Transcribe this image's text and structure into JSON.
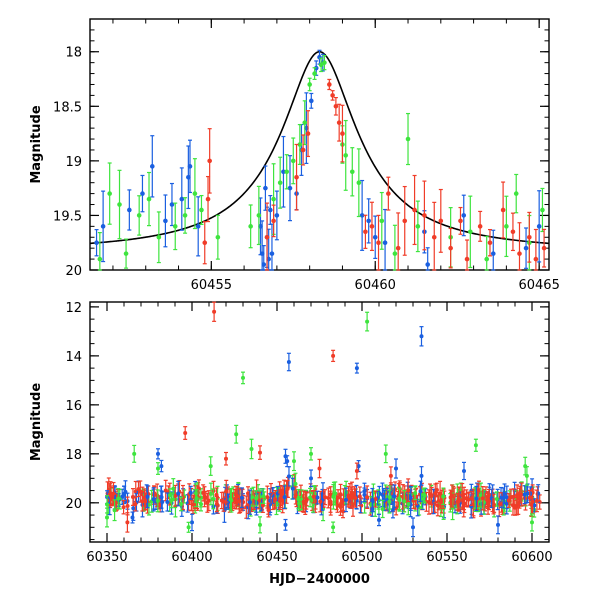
{
  "colors": {
    "blue": "#1a5fe0",
    "green": "#3ee43e",
    "red": "#f03c28",
    "model": "#000000"
  },
  "chart_data": [
    {
      "type": "scatter",
      "title": "",
      "xlabel": "",
      "ylabel": "Magnitude",
      "xlim": [
        60451.3,
        60465.3
      ],
      "ylim": [
        20.0,
        17.7
      ],
      "y_inverted": true,
      "xticks": [
        60455,
        60460,
        60465
      ],
      "xtick_labels": [
        "60455",
        "60460",
        "60465"
      ],
      "yticks": [
        18,
        18.5,
        19,
        19.5,
        20
      ],
      "ytick_labels": [
        "18",
        "18.5",
        "19",
        "19.5",
        "20"
      ],
      "model_curve": {
        "name": "",
        "type": "lorentzian",
        "t0": 60458.3,
        "peak_mag": 18.0,
        "baseline_mag": 19.84,
        "width_days": 0.95
      },
      "series": [
        {
          "color": "blue",
          "points": [
            [
              60451.5,
              19.75
            ],
            [
              60451.7,
              19.6
            ],
            [
              60452.5,
              19.45
            ],
            [
              60452.9,
              19.3
            ],
            [
              60453.2,
              19.05
            ],
            [
              60453.6,
              19.55
            ],
            [
              60453.8,
              19.4
            ],
            [
              60454.1,
              19.35
            ],
            [
              60454.3,
              19.15
            ],
            [
              60454.35,
              19.05
            ],
            [
              60454.6,
              19.6
            ],
            [
              60456.5,
              19.6
            ],
            [
              60456.55,
              19.85
            ],
            [
              60456.6,
              19.95
            ],
            [
              60456.65,
              19.25
            ],
            [
              60456.7,
              19.7
            ],
            [
              60456.75,
              19.9
            ],
            [
              60456.8,
              19.45
            ],
            [
              60456.85,
              19.85
            ],
            [
              60457.0,
              19.5
            ],
            [
              60457.2,
              19.1
            ],
            [
              60457.4,
              19.25
            ],
            [
              60457.6,
              19.3
            ],
            [
              60457.75,
              18.9
            ],
            [
              60457.9,
              18.7
            ],
            [
              60458.05,
              18.45
            ],
            [
              60458.2,
              18.15
            ],
            [
              60458.3,
              18.05
            ],
            [
              60458.4,
              18.1
            ],
            [
              60459.6,
              19.5
            ],
            [
              60459.8,
              19.55
            ],
            [
              60460.0,
              19.7
            ],
            [
              60460.3,
              19.75
            ],
            [
              60461.5,
              19.65
            ],
            [
              60461.6,
              19.95
            ],
            [
              60462.7,
              19.5
            ],
            [
              60463.6,
              19.85
            ],
            [
              60464.6,
              19.8
            ],
            [
              60465.0,
              19.6
            ]
          ]
        },
        {
          "color": "green",
          "points": [
            [
              60451.6,
              19.9
            ],
            [
              60451.9,
              19.3
            ],
            [
              60452.2,
              19.4
            ],
            [
              60452.4,
              19.85
            ],
            [
              60452.8,
              19.5
            ],
            [
              60453.1,
              19.35
            ],
            [
              60453.4,
              19.7
            ],
            [
              60453.9,
              19.6
            ],
            [
              60454.2,
              19.5
            ],
            [
              60454.5,
              19.3
            ],
            [
              60454.7,
              19.45
            ],
            [
              60455.2,
              19.7
            ],
            [
              60456.2,
              19.6
            ],
            [
              60456.45,
              19.5
            ],
            [
              60456.9,
              19.35
            ],
            [
              60457.1,
              19.2
            ],
            [
              60457.3,
              19.1
            ],
            [
              60457.5,
              19.0
            ],
            [
              60457.7,
              18.85
            ],
            [
              60457.85,
              18.65
            ],
            [
              60458.0,
              18.3
            ],
            [
              60458.15,
              18.2
            ],
            [
              60458.35,
              18.12
            ],
            [
              60458.45,
              18.1
            ],
            [
              60459.0,
              18.85
            ],
            [
              60459.1,
              18.95
            ],
            [
              60459.3,
              19.1
            ],
            [
              60459.5,
              19.2
            ],
            [
              60460.2,
              19.55
            ],
            [
              60460.6,
              19.85
            ],
            [
              60461.0,
              18.8
            ],
            [
              60461.3,
              19.6
            ],
            [
              60462.3,
              19.7
            ],
            [
              60462.9,
              19.65
            ],
            [
              60463.4,
              19.9
            ],
            [
              60464.0,
              19.6
            ],
            [
              60464.3,
              19.3
            ],
            [
              60464.7,
              19.75
            ],
            [
              60465.1,
              19.45
            ]
          ]
        },
        {
          "color": "red",
          "points": [
            [
              60454.8,
              19.75
            ],
            [
              60454.9,
              19.35
            ],
            [
              60454.95,
              19.0
            ],
            [
              60456.7,
              19.7
            ],
            [
              60456.9,
              19.55
            ],
            [
              60457.6,
              19.15
            ],
            [
              60457.8,
              18.9
            ],
            [
              60457.95,
              18.75
            ],
            [
              60458.6,
              18.3
            ],
            [
              60458.7,
              18.4
            ],
            [
              60458.8,
              18.5
            ],
            [
              60458.9,
              18.65
            ],
            [
              60459.0,
              18.75
            ],
            [
              60459.7,
              19.65
            ],
            [
              60459.9,
              19.6
            ],
            [
              60460.1,
              19.75
            ],
            [
              60460.4,
              19.3
            ],
            [
              60460.7,
              19.8
            ],
            [
              60460.9,
              19.55
            ],
            [
              60461.2,
              19.45
            ],
            [
              60461.5,
              19.5
            ],
            [
              60461.8,
              19.7
            ],
            [
              60462.0,
              19.55
            ],
            [
              60462.3,
              19.8
            ],
            [
              60462.6,
              19.55
            ],
            [
              60462.8,
              19.9
            ],
            [
              60463.2,
              19.6
            ],
            [
              60463.5,
              19.75
            ],
            [
              60463.9,
              19.45
            ],
            [
              60464.2,
              19.65
            ],
            [
              60464.4,
              19.85
            ],
            [
              60464.7,
              19.7
            ],
            [
              60464.9,
              19.9
            ],
            [
              60465.15,
              19.8
            ]
          ]
        }
      ]
    },
    {
      "type": "scatter",
      "title": "",
      "xlabel": "HJD−2400000",
      "ylabel": "Magnitude",
      "xlim": [
        60340,
        60610
      ],
      "ylim": [
        21.6,
        11.8
      ],
      "y_inverted": true,
      "xticks": [
        60350,
        60400,
        60450,
        60500,
        60550,
        60600
      ],
      "xtick_labels": [
        "60350",
        "60400",
        "60450",
        "60500",
        "60550",
        "60600"
      ],
      "yticks": [
        12,
        14,
        16,
        18,
        20
      ],
      "ytick_labels": [
        "12",
        "14",
        "16",
        "18",
        "20"
      ],
      "baseline": {
        "x_range": [
          60350,
          60605
        ],
        "center_mag": 19.85,
        "scatter": 0.35
      },
      "series": [
        {
          "color": "blue",
          "points": [
            [
              60457,
              14.25
            ],
            [
              60497,
              14.5
            ],
            [
              60535,
              13.2
            ],
            [
              60380,
              18.0
            ],
            [
              60382,
              18.5
            ],
            [
              60455,
              18.1
            ],
            [
              60456,
              18.3
            ],
            [
              60498,
              18.5
            ],
            [
              60520,
              18.6
            ],
            [
              60535,
              18.9
            ],
            [
              60560,
              18.7
            ],
            [
              60470,
              19.0
            ],
            [
              60530,
              21.0
            ],
            [
              60400,
              20.8
            ],
            [
              60580,
              20.9
            ],
            [
              60365,
              20.6
            ],
            [
              60455,
              20.9
            ],
            [
              60510,
              20.7
            ]
          ]
        },
        {
          "color": "green",
          "points": [
            [
              60430,
              14.9
            ],
            [
              60503,
              12.6
            ],
            [
              60366,
              18.0
            ],
            [
              60380,
              18.6
            ],
            [
              60426,
              17.2
            ],
            [
              60435,
              17.8
            ],
            [
              60411,
              18.5
            ],
            [
              60460,
              18.3
            ],
            [
              60470,
              18.0
            ],
            [
              60514,
              18.0
            ],
            [
              60567,
              17.65
            ],
            [
              60596,
              18.5
            ],
            [
              60597,
              18.9
            ],
            [
              60398,
              21.0
            ],
            [
              60483,
              21.0
            ],
            [
              60600,
              20.8
            ],
            [
              60350,
              20.6
            ],
            [
              60440,
              20.9
            ]
          ]
        },
        {
          "color": "red",
          "points": [
            [
              60413,
              12.2
            ],
            [
              60483,
              14.0
            ],
            [
              60396,
              17.15
            ],
            [
              60440,
              17.95
            ],
            [
              60420,
              18.2
            ],
            [
              60475,
              18.6
            ],
            [
              60497,
              18.7
            ],
            [
              60517,
              18.9
            ],
            [
              60362,
              20.8
            ],
            [
              60445,
              20.3
            ],
            [
              60590,
              20.2
            ]
          ]
        }
      ]
    }
  ]
}
